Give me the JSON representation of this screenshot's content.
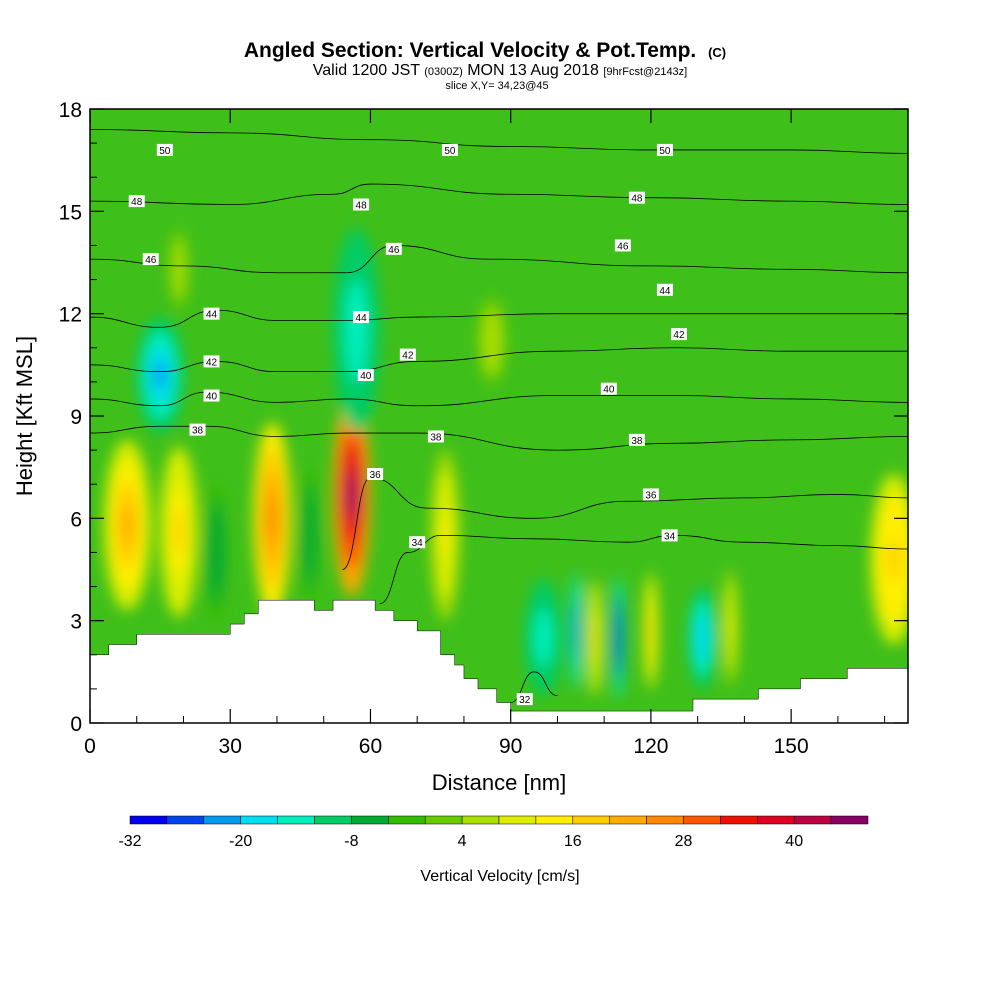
{
  "title": {
    "main": "Angled Section: Vertical Velocity & Pot.Temp.",
    "main_suffix": "(C)",
    "valid_prefix": "Valid 1200 JST",
    "valid_utc": "(0300Z)",
    "valid_date": "MON 13 Aug 2018",
    "valid_fcst": "[9hrFcst@2143z]",
    "slice": "slice X,Y= 34,23@45"
  },
  "chart_data": {
    "type": "heatmap",
    "xlabel": "Distance [nm]",
    "ylabel": "Height [Kft MSL]",
    "xlim": [
      0,
      175
    ],
    "ylim": [
      0,
      18
    ],
    "x_ticks": [
      0,
      30,
      60,
      90,
      120,
      150
    ],
    "y_ticks": [
      0,
      3,
      6,
      9,
      12,
      15,
      18
    ],
    "colorbar": {
      "label": "Vertical Velocity [cm/s]",
      "tick_labels": [
        "-32",
        "-20",
        "-8",
        "4",
        "16",
        "28",
        "40"
      ],
      "range": [
        -32,
        48
      ],
      "step": 4,
      "colors": [
        "#0000ee",
        "#0044ee",
        "#0099ee",
        "#00ddee",
        "#00eebb",
        "#00cc66",
        "#00aa33",
        "#33bb00",
        "#66cc00",
        "#aadd00",
        "#ddee00",
        "#ffee00",
        "#ffcc00",
        "#ffaa00",
        "#ff8800",
        "#ff5500",
        "#ee1100",
        "#dd0022",
        "#bb0044",
        "#880066"
      ]
    },
    "terrain": [
      [
        0,
        2
      ],
      [
        4,
        2
      ],
      [
        4,
        2.3
      ],
      [
        10,
        2.3
      ],
      [
        10,
        2.6
      ],
      [
        30,
        2.6
      ],
      [
        30,
        2.9
      ],
      [
        33,
        2.9
      ],
      [
        33,
        3.2
      ],
      [
        36,
        3.2
      ],
      [
        36,
        3.6
      ],
      [
        48,
        3.6
      ],
      [
        48,
        3.3
      ],
      [
        52,
        3.3
      ],
      [
        52,
        3.6
      ],
      [
        61,
        3.6
      ],
      [
        61,
        3.3
      ],
      [
        65,
        3.3
      ],
      [
        65,
        3.0
      ],
      [
        70,
        3.0
      ],
      [
        70,
        2.7
      ],
      [
        75,
        2.7
      ],
      [
        75,
        2.0
      ],
      [
        78,
        2.0
      ],
      [
        78,
        1.7
      ],
      [
        80,
        1.7
      ],
      [
        80,
        1.3
      ],
      [
        83,
        1.3
      ],
      [
        83,
        1.0
      ],
      [
        87,
        1.0
      ],
      [
        87,
        0.6
      ],
      [
        90,
        0.6
      ],
      [
        90,
        0.35
      ],
      [
        129,
        0.35
      ],
      [
        129,
        0.7
      ],
      [
        143,
        0.7
      ],
      [
        143,
        1.0
      ],
      [
        152,
        1.0
      ],
      [
        152,
        1.3
      ],
      [
        162,
        1.3
      ],
      [
        162,
        1.6
      ],
      [
        175,
        1.6
      ]
    ],
    "velocity_blobs": [
      {
        "x": 15,
        "y": 10.2,
        "rx": 5,
        "ry": 1.7,
        "w": -22
      },
      {
        "x": 19,
        "y": 13.3,
        "rx": 2,
        "ry": 1.2,
        "w": 6
      },
      {
        "x": 8,
        "y": 5.8,
        "rx": 5,
        "ry": 2.5,
        "w": 22
      },
      {
        "x": 19,
        "y": 5.6,
        "rx": 4,
        "ry": 2.5,
        "w": 17
      },
      {
        "x": 27,
        "y": 5.0,
        "rx": 2.5,
        "ry": 2.0,
        "w": -6
      },
      {
        "x": 39,
        "y": 6.0,
        "rx": 4,
        "ry": 2.8,
        "w": 24
      },
      {
        "x": 47,
        "y": 5.5,
        "rx": 2,
        "ry": 2.0,
        "w": -6
      },
      {
        "x": 56,
        "y": 6.7,
        "rx": 4,
        "ry": 3.0,
        "w": 44
      },
      {
        "x": 57,
        "y": 11.5,
        "rx": 5,
        "ry": 3.0,
        "w": -16
      },
      {
        "x": 76,
        "y": 5.5,
        "rx": 3,
        "ry": 2.5,
        "w": 14
      },
      {
        "x": 86,
        "y": 11.2,
        "rx": 3,
        "ry": 1.3,
        "w": 6
      },
      {
        "x": 97,
        "y": 2.5,
        "rx": 4,
        "ry": 1.7,
        "w": -16
      },
      {
        "x": 104,
        "y": 2.7,
        "rx": 1.2,
        "ry": 1.7,
        "w": -24
      },
      {
        "x": 108,
        "y": 2.5,
        "rx": 1.5,
        "ry": 1.7,
        "w": 16
      },
      {
        "x": 113,
        "y": 2.5,
        "rx": 1.2,
        "ry": 1.8,
        "w": -30
      },
      {
        "x": 120,
        "y": 2.7,
        "rx": 1.5,
        "ry": 1.7,
        "w": 18
      },
      {
        "x": 131,
        "y": 2.5,
        "rx": 3,
        "ry": 1.5,
        "w": -20
      },
      {
        "x": 137,
        "y": 2.8,
        "rx": 1.5,
        "ry": 1.7,
        "w": 14
      },
      {
        "x": 172,
        "y": 4.8,
        "rx": 5,
        "ry": 2.5,
        "w": 18
      }
    ],
    "isentropes": [
      {
        "level": 50,
        "points": [
          [
            0,
            17.4
          ],
          [
            30,
            17.3
          ],
          [
            60,
            17.1
          ],
          [
            90,
            16.9
          ],
          [
            120,
            16.8
          ],
          [
            150,
            16.8
          ],
          [
            175,
            16.7
          ]
        ]
      },
      {
        "level": 48,
        "points": [
          [
            0,
            15.3
          ],
          [
            30,
            15.2
          ],
          [
            52,
            15.5
          ],
          [
            60,
            15.8
          ],
          [
            90,
            15.5
          ],
          [
            120,
            15.4
          ],
          [
            150,
            15.3
          ],
          [
            175,
            15.2
          ]
        ]
      },
      {
        "level": 46,
        "points": [
          [
            0,
            13.6
          ],
          [
            20,
            13.4
          ],
          [
            40,
            13.2
          ],
          [
            55,
            13.2
          ],
          [
            65,
            14.0
          ],
          [
            85,
            13.6
          ],
          [
            120,
            13.4
          ],
          [
            150,
            13.3
          ],
          [
            175,
            13.2
          ]
        ]
      },
      {
        "level": 44,
        "points": [
          [
            0,
            11.9
          ],
          [
            15,
            11.6
          ],
          [
            27,
            12.1
          ],
          [
            40,
            11.8
          ],
          [
            55,
            11.8
          ],
          [
            70,
            11.9
          ],
          [
            100,
            12.0
          ],
          [
            125,
            12.0
          ],
          [
            150,
            12.0
          ],
          [
            175,
            12.0
          ]
        ]
      },
      {
        "level": 42,
        "points": [
          [
            0,
            10.5
          ],
          [
            15,
            10.3
          ],
          [
            27,
            10.6
          ],
          [
            40,
            10.3
          ],
          [
            55,
            10.3
          ],
          [
            70,
            10.6
          ],
          [
            100,
            10.9
          ],
          [
            125,
            11.0
          ],
          [
            150,
            10.9
          ],
          [
            175,
            10.9
          ]
        ]
      },
      {
        "level": 40,
        "points": [
          [
            0,
            9.5
          ],
          [
            15,
            9.3
          ],
          [
            25,
            9.7
          ],
          [
            40,
            9.4
          ],
          [
            55,
            9.5
          ],
          [
            70,
            9.3
          ],
          [
            100,
            9.6
          ],
          [
            125,
            9.6
          ],
          [
            150,
            9.5
          ],
          [
            175,
            9.4
          ]
        ]
      },
      {
        "level": 38,
        "points": [
          [
            0,
            8.5
          ],
          [
            15,
            8.7
          ],
          [
            25,
            8.7
          ],
          [
            40,
            8.4
          ],
          [
            55,
            8.5
          ],
          [
            70,
            8.5
          ],
          [
            100,
            8.0
          ],
          [
            125,
            8.2
          ],
          [
            150,
            8.3
          ],
          [
            175,
            8.4
          ]
        ]
      },
      {
        "level": 36,
        "points": [
          [
            54,
            4.5
          ],
          [
            60,
            7.2
          ],
          [
            72,
            6.3
          ],
          [
            95,
            6.0
          ],
          [
            115,
            6.5
          ],
          [
            140,
            6.6
          ],
          [
            160,
            6.7
          ],
          [
            175,
            6.6
          ]
        ]
      },
      {
        "level": 34,
        "points": [
          [
            62,
            3.5
          ],
          [
            68,
            5.0
          ],
          [
            75,
            5.5
          ],
          [
            95,
            5.4
          ],
          [
            115,
            5.3
          ],
          [
            125,
            5.5
          ],
          [
            140,
            5.3
          ],
          [
            160,
            5.2
          ],
          [
            175,
            5.1
          ]
        ]
      },
      {
        "level": 32,
        "points": [
          [
            90,
            0.6
          ],
          [
            95,
            1.5
          ],
          [
            100,
            0.8
          ]
        ]
      }
    ],
    "contour_labels": [
      {
        "text": "50",
        "x": 16,
        "y": 16.8
      },
      {
        "text": "50",
        "x": 77,
        "y": 16.8
      },
      {
        "text": "50",
        "x": 123,
        "y": 16.8
      },
      {
        "text": "48",
        "x": 10,
        "y": 15.3
      },
      {
        "text": "48",
        "x": 58,
        "y": 15.2
      },
      {
        "text": "48",
        "x": 117,
        "y": 15.4
      },
      {
        "text": "46",
        "x": 13,
        "y": 13.6
      },
      {
        "text": "46",
        "x": 65,
        "y": 13.9
      },
      {
        "text": "46",
        "x": 114,
        "y": 14.0
      },
      {
        "text": "44",
        "x": 26,
        "y": 12.0
      },
      {
        "text": "44",
        "x": 58,
        "y": 11.9
      },
      {
        "text": "44",
        "x": 123,
        "y": 12.7
      },
      {
        "text": "42",
        "x": 26,
        "y": 10.6
      },
      {
        "text": "42",
        "x": 68,
        "y": 10.8
      },
      {
        "text": "42",
        "x": 126,
        "y": 11.4
      },
      {
        "text": "40",
        "x": 26,
        "y": 9.6
      },
      {
        "text": "40",
        "x": 59,
        "y": 10.2
      },
      {
        "text": "40",
        "x": 111,
        "y": 9.8
      },
      {
        "text": "38",
        "x": 23,
        "y": 8.6
      },
      {
        "text": "38",
        "x": 74,
        "y": 8.4
      },
      {
        "text": "38",
        "x": 117,
        "y": 8.3
      },
      {
        "text": "36",
        "x": 61,
        "y": 7.3
      },
      {
        "text": "36",
        "x": 120,
        "y": 6.7
      },
      {
        "text": "34",
        "x": 70,
        "y": 5.3
      },
      {
        "text": "34",
        "x": 124,
        "y": 5.5
      },
      {
        "text": "32",
        "x": 93,
        "y": 0.7
      }
    ]
  }
}
